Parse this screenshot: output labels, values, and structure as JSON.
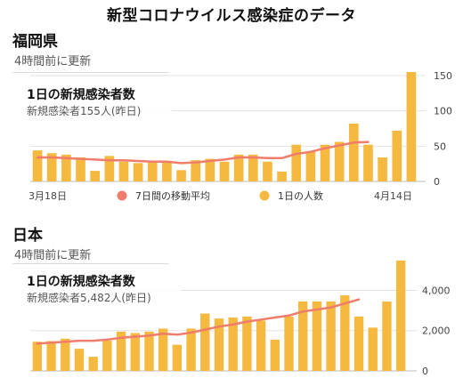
{
  "page_title": "新型コロナウイルス感染症のデータ",
  "colors": {
    "bar": "#F5B93F",
    "line": "#F07C6C",
    "grid": "#e3e3e3",
    "axis": "#bbbbbb"
  },
  "chart_data": [
    {
      "type": "bar",
      "region": "福岡県",
      "updated": "4時間前に更新",
      "overlay_title": "1日の新規感染者数",
      "overlay_sub": "新規感染者155人(昨日)",
      "x_start_label": "3月18日",
      "x_end_label": "4月14日",
      "legend": [
        "7日間の移動平均",
        "1日の人数"
      ],
      "ylim": [
        0,
        160
      ],
      "yticks": [
        0,
        50,
        100,
        150
      ],
      "ytick_labels": [
        "0",
        "50",
        "100",
        "150"
      ],
      "values": [
        44,
        40,
        38,
        34,
        15,
        36,
        28,
        26,
        28,
        28,
        16,
        30,
        32,
        28,
        38,
        38,
        28,
        14,
        52,
        42,
        52,
        56,
        82,
        52,
        34,
        72,
        155
      ],
      "moving_avg": [
        34,
        34,
        33,
        32,
        31,
        30,
        30,
        29,
        28,
        28,
        26,
        27,
        29,
        31,
        34,
        34,
        33,
        33,
        39,
        42,
        47,
        51,
        55,
        56,
        null,
        null,
        null
      ]
    },
    {
      "type": "bar",
      "region": "日本",
      "updated": "4時間前に更新",
      "overlay_title": "1日の新規感染者数",
      "overlay_sub": "新規感染者5,482人(昨日)",
      "ylim": [
        0,
        5700
      ],
      "yticks": [
        0,
        2000,
        4000
      ],
      "ytick_labels": [
        "0",
        "2,000",
        "4,000"
      ],
      "values": [
        1450,
        1480,
        1600,
        1100,
        700,
        1500,
        1950,
        1880,
        1950,
        2100,
        1300,
        2100,
        2850,
        2600,
        2650,
        2700,
        2500,
        1550,
        2700,
        3450,
        3450,
        3450,
        3750,
        2700,
        2150,
        3450,
        5482
      ],
      "moving_avg": [
        1350,
        1400,
        1450,
        1500,
        1500,
        1550,
        1650,
        1700,
        1750,
        1850,
        1800,
        1900,
        2050,
        2200,
        2300,
        2450,
        2550,
        2650,
        2750,
        2950,
        3050,
        3150,
        3350,
        3550,
        null,
        null,
        null
      ]
    }
  ]
}
